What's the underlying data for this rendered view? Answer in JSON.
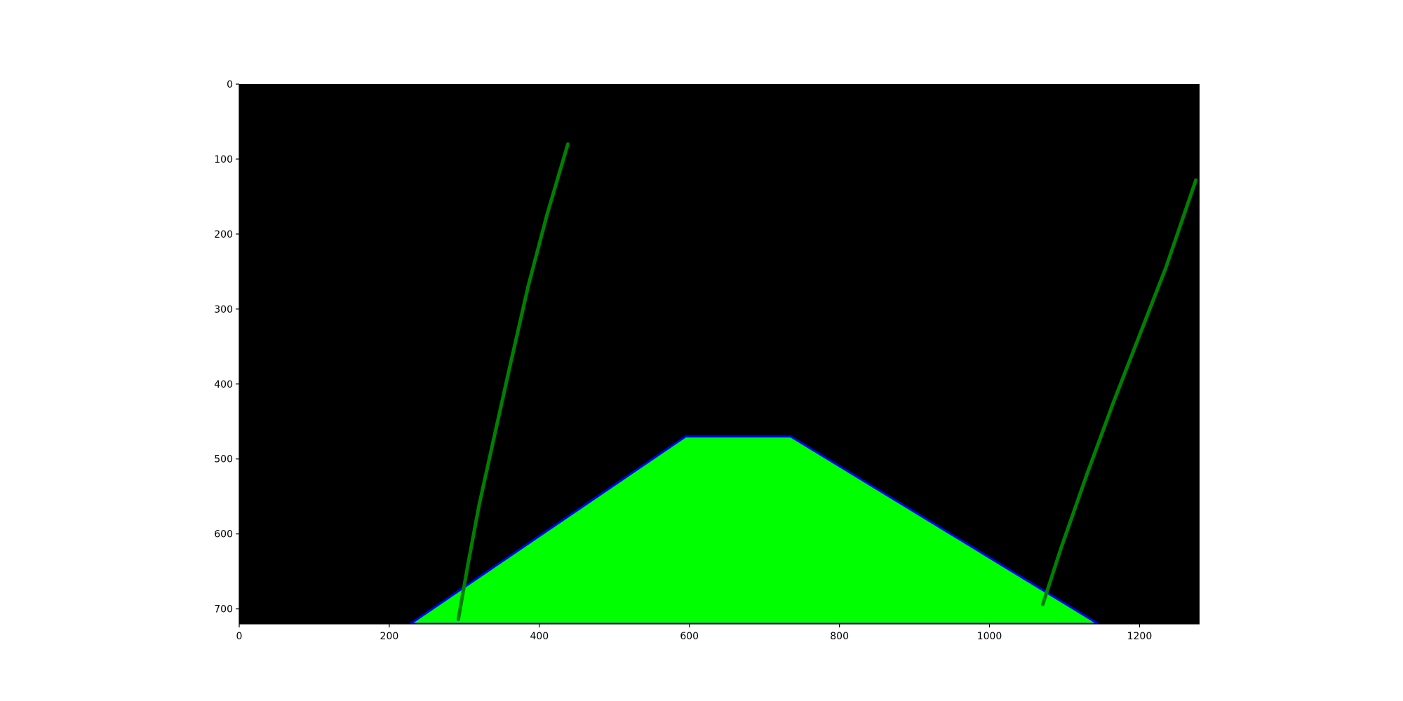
{
  "chart_data": {
    "type": "image-plot",
    "xlim": [
      0,
      1280
    ],
    "ylim": [
      720,
      0
    ],
    "x_ticks": [
      0,
      200,
      400,
      600,
      800,
      1000,
      1200
    ],
    "y_ticks": [
      0,
      100,
      200,
      300,
      400,
      500,
      600,
      700
    ],
    "background_color": "#000000",
    "region": {
      "fill": "#00ff00",
      "outline": "#0000ff",
      "vertices": [
        [
          228,
          720
        ],
        [
          595,
          470
        ],
        [
          735,
          470
        ],
        [
          1145,
          720
        ]
      ]
    },
    "curves": [
      {
        "color": "#008000",
        "points": [
          [
            292,
            714
          ],
          [
            305,
            640
          ],
          [
            320,
            560
          ],
          [
            340,
            470
          ],
          [
            360,
            380
          ],
          [
            385,
            270
          ],
          [
            410,
            175
          ],
          [
            438,
            80
          ]
        ]
      },
      {
        "color": "#008000",
        "points": [
          [
            1071,
            694
          ],
          [
            1095,
            620
          ],
          [
            1130,
            520
          ],
          [
            1165,
            425
          ],
          [
            1200,
            335
          ],
          [
            1235,
            245
          ],
          [
            1275,
            128
          ]
        ]
      }
    ]
  }
}
